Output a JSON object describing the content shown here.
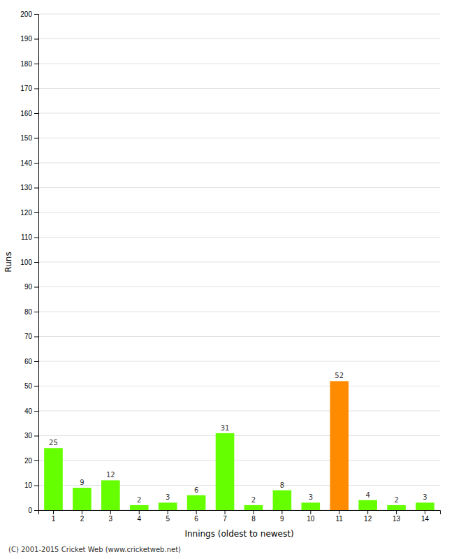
{
  "chart_data": {
    "type": "bar",
    "x_label": "Innings (oldest to newest)",
    "y_label": "Runs",
    "categories": [
      "1",
      "2",
      "3",
      "4",
      "5",
      "6",
      "7",
      "8",
      "9",
      "10",
      "11",
      "12",
      "13",
      "14"
    ],
    "values": [
      25,
      9,
      12,
      2,
      3,
      6,
      31,
      2,
      8,
      3,
      52,
      4,
      2,
      3
    ],
    "colors": [
      "#66ff00",
      "#66ff00",
      "#66ff00",
      "#66ff00",
      "#66ff00",
      "#66ff00",
      "#66ff00",
      "#66ff00",
      "#66ff00",
      "#66ff00",
      "#ff8c00",
      "#66ff00",
      "#66ff00",
      "#66ff00"
    ],
    "ylim": [
      0,
      200
    ],
    "yticks": [
      0,
      10,
      20,
      30,
      40,
      50,
      60,
      70,
      80,
      90,
      100,
      110,
      120,
      130,
      140,
      150,
      160,
      170,
      180,
      190,
      200
    ],
    "grid": true,
    "data_labels": true,
    "annotations": [
      "(C) 2001-2015 Cricket Web (www.cricketweb.net)"
    ]
  }
}
